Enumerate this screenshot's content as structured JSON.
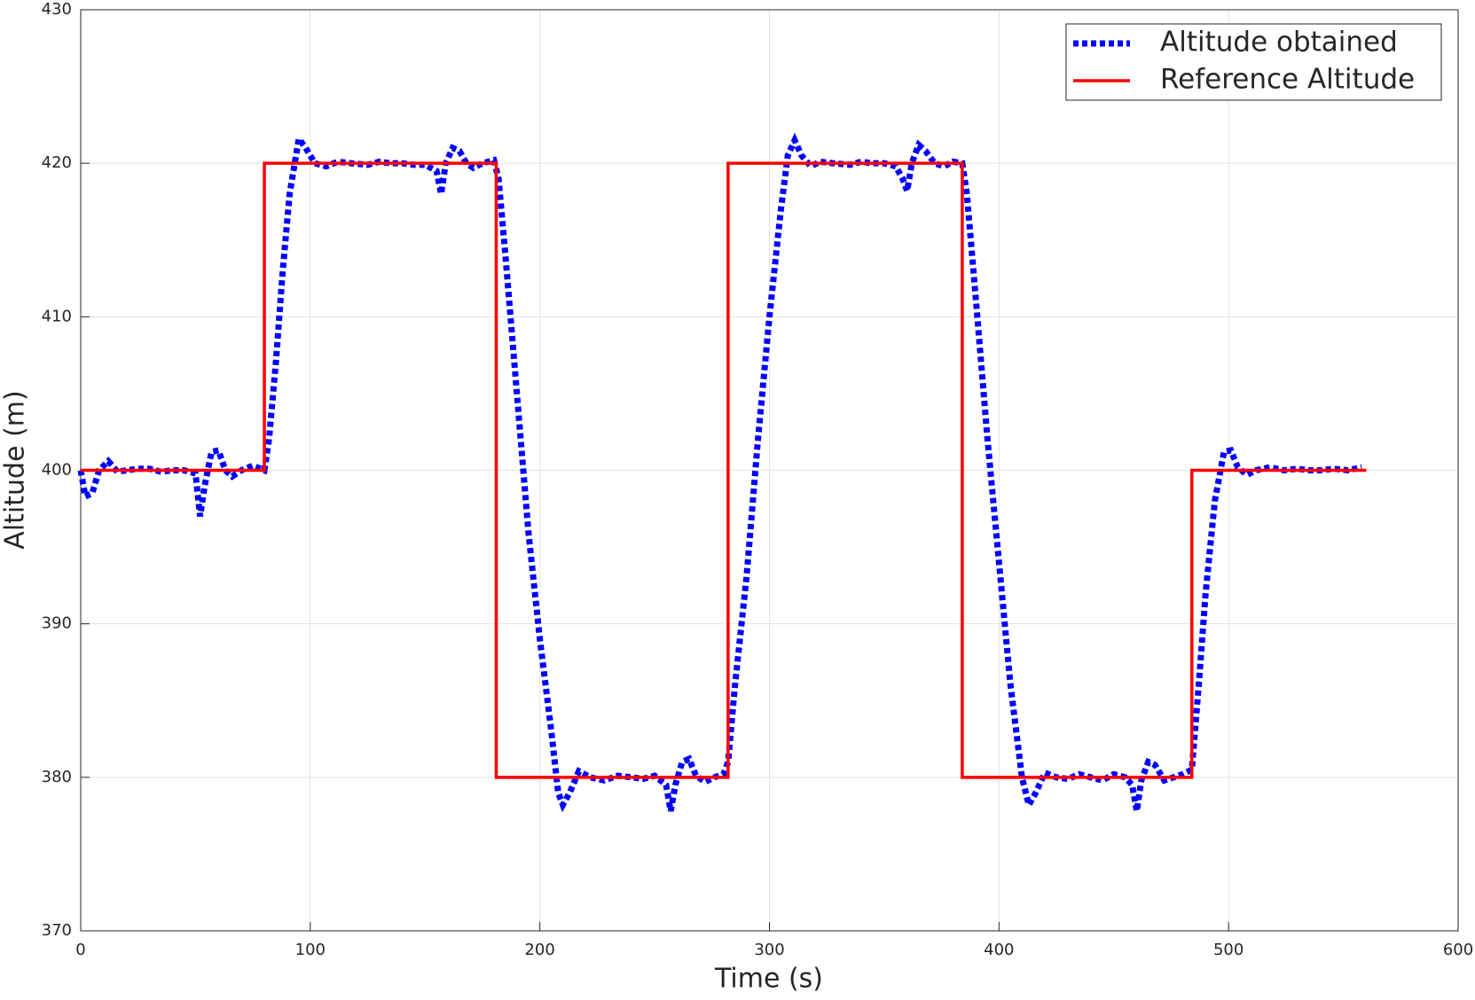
{
  "chart_data": {
    "type": "line",
    "xlabel": "Time (s)",
    "ylabel": "Altitude (m)",
    "xlim": [
      0,
      600
    ],
    "ylim": [
      370,
      430
    ],
    "xticks": [
      0,
      100,
      200,
      300,
      400,
      500,
      600
    ],
    "yticks": [
      370,
      380,
      390,
      400,
      410,
      420,
      430
    ],
    "grid": true,
    "legend": "upper right",
    "series": [
      {
        "name": "Altitude obtained",
        "color": "#0000ff",
        "style": "dotted",
        "x": [
          0,
          2,
          5,
          8,
          12,
          16,
          20,
          25,
          30,
          35,
          40,
          45,
          50,
          52,
          54,
          57,
          60,
          63,
          66,
          70,
          75,
          80,
          82,
          85,
          88,
          91,
          95,
          98,
          102,
          107,
          112,
          118,
          125,
          130,
          135,
          140,
          145,
          150,
          155,
          157,
          159,
          162,
          165,
          168,
          171,
          175,
          180,
          182,
          185,
          190,
          195,
          200,
          205,
          208,
          210,
          213,
          217,
          222,
          228,
          234,
          240,
          245,
          250,
          255,
          257,
          259,
          262,
          265,
          268,
          272,
          276,
          280,
          282,
          285,
          290,
          295,
          300,
          305,
          308,
          311,
          314,
          318,
          322,
          328,
          335,
          340,
          345,
          350,
          355,
          358,
          360,
          362,
          365,
          368,
          372,
          376,
          380,
          384,
          386,
          390,
          395,
          400,
          405,
          410,
          413,
          416,
          420,
          425,
          430,
          435,
          440,
          445,
          450,
          455,
          458,
          460,
          462,
          465,
          468,
          472,
          476,
          480,
          484,
          487,
          490,
          494,
          498,
          501,
          504,
          508,
          512,
          518,
          524,
          530,
          535,
          540,
          546,
          552,
          558
        ],
        "values": [
          400,
          398.3,
          398.5,
          400,
          400.6,
          399.9,
          400,
          400.1,
          400.1,
          399.9,
          400,
          400,
          399.8,
          397,
          399,
          401.2,
          401.3,
          400,
          399.6,
          400,
          400.3,
          400,
          402,
          407,
          413,
          418,
          421.6,
          421,
          420,
          419.8,
          420.1,
          420,
          419.9,
          420.1,
          420,
          420,
          419.9,
          419.9,
          419.5,
          418,
          420,
          421,
          420.8,
          420,
          419.7,
          420,
          420.2,
          419,
          414,
          405,
          396,
          389,
          383,
          379,
          378.2,
          379,
          380.4,
          380,
          379.8,
          380.1,
          380,
          379.9,
          380.1,
          379.5,
          377.8,
          379.5,
          381,
          381.2,
          380.1,
          379.7,
          380,
          380.2,
          381,
          386,
          393,
          402,
          410,
          417,
          420.5,
          421.5,
          420.5,
          419.8,
          420.1,
          420,
          419.9,
          420.1,
          420,
          420,
          419.8,
          419,
          418.2,
          420,
          421.2,
          420.8,
          420,
          419.8,
          420.1,
          420,
          418,
          411,
          402,
          394,
          386,
          380,
          378.2,
          379,
          380.3,
          380,
          379.9,
          380.2,
          380,
          379.8,
          380.2,
          380,
          379.5,
          377.8,
          379.8,
          381,
          380.8,
          379.8,
          380,
          380.2,
          380.5,
          386,
          392,
          398,
          401.2,
          401.3,
          400.2,
          399.7,
          400,
          400.2,
          400,
          400.1,
          400,
          400,
          400.1,
          400,
          400.2
        ]
      },
      {
        "name": "Reference Altitude",
        "color": "#ff0000",
        "style": "solid",
        "x": [
          0,
          80,
          80,
          181,
          181,
          282,
          282,
          384,
          384,
          484,
          484,
          560
        ],
        "values": [
          400,
          400,
          420,
          420,
          380,
          380,
          420,
          420,
          380,
          380,
          400,
          400
        ]
      }
    ]
  }
}
